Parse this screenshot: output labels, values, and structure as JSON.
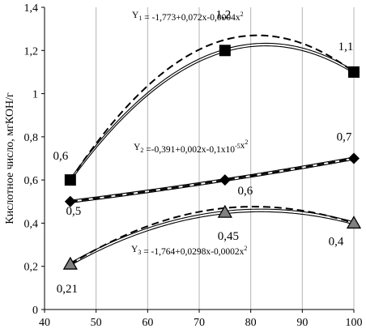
{
  "chart_data": {
    "type": "line",
    "ylabel": "Кислотное число, мгКОН/г",
    "xlabel": "",
    "xlim": [
      40,
      100
    ],
    "ylim": [
      0,
      1.4
    ],
    "xticks": [
      40,
      50,
      60,
      70,
      80,
      90,
      100
    ],
    "xtick_labels": [
      "40",
      "50",
      "60",
      "70",
      "80",
      "90",
      "100"
    ],
    "yticks": [
      0,
      0.2,
      0.4,
      0.6,
      0.8,
      1,
      1.2,
      1.4
    ],
    "ytick_labels": [
      "0",
      "0,2",
      "0,4",
      "0,6",
      "0,8",
      "1",
      "1,2",
      "1,4"
    ],
    "grid": "vertical",
    "series": [
      {
        "marker": "square",
        "x": [
          45,
          75,
          100
        ],
        "y": [
          0.6,
          1.2,
          1.1
        ],
        "labels": [
          "0,6",
          "1,2",
          "1,1"
        ],
        "equation": "Y₁ = -1,773+0,072x-0,0004x²"
      },
      {
        "marker": "diamond",
        "x": [
          45,
          75,
          100
        ],
        "y": [
          0.5,
          0.6,
          0.7
        ],
        "labels": [
          "0,5",
          "0,6",
          "0,7"
        ],
        "equation": "Y₂ =-0,391+0,002x-0,1x10⁻⁵x²"
      },
      {
        "marker": "triangle",
        "x": [
          45,
          75,
          100
        ],
        "y": [
          0.21,
          0.45,
          0.4
        ],
        "labels": [
          "0,21",
          "0,45",
          "0,4"
        ],
        "equation": "Y₃ = -1,764+0,0298x-0,0002x²"
      }
    ]
  }
}
